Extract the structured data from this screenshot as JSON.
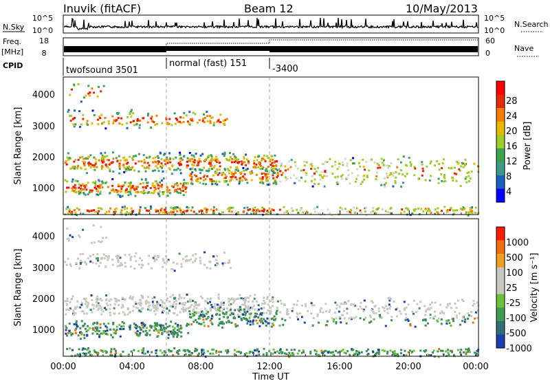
{
  "header": {
    "station": "Inuvik (fitACF)",
    "beam": "Beam 12",
    "date": "10/May/2013"
  },
  "strips": {
    "nsky_label": "N.Sky",
    "nsearch_label": "N.Search",
    "nsky_ticks": [
      "10^5",
      "10^0"
    ],
    "nsearch_ticks": [
      "10^5",
      "10^0"
    ],
    "freq_label": "Freq.",
    "freq_unit": "[MHz]",
    "freq_ticks": [
      "18",
      "8"
    ],
    "nave_label": "Nave",
    "nave_ticks": [
      "60",
      "0"
    ],
    "cpid_label": "CPID",
    "cpid_segments": [
      {
        "start": 0,
        "end": 6,
        "label": "twofsound 3501"
      },
      {
        "start": 6,
        "end": 12,
        "label": "normal (fast) 151"
      },
      {
        "start": 12,
        "end": 24,
        "label": "-3400"
      }
    ]
  },
  "chart_data": [
    {
      "type": "heatmap",
      "name": "power",
      "ylabel": "Slant Range [km]",
      "ylim": [
        180,
        4600
      ],
      "yticks": [
        "1000",
        "2000",
        "3000",
        "4000"
      ],
      "xlim": [
        0,
        24
      ],
      "colorbar_label": "Power [dB]",
      "colorbar_ticks": [
        "28",
        "24",
        "20",
        "16",
        "12",
        "8",
        "4"
      ],
      "colors": [
        "#0000ff",
        "#1a5fc0",
        "#3e9b8a",
        "#3ca24a",
        "#9ecc2a",
        "#e8b800",
        "#f57d00",
        "#e62a00",
        "#ff0000"
      ]
    },
    {
      "type": "heatmap",
      "name": "velocity",
      "ylabel": "Slant Range [km]",
      "ylim": [
        180,
        4600
      ],
      "yticks": [
        "1000",
        "2000",
        "3000",
        "4000"
      ],
      "xlim": [
        0,
        24
      ],
      "xlabel": "Time UT",
      "xticks": [
        "00:00",
        "04:00",
        "08:00",
        "12:00",
        "16:00",
        "20:00",
        "00:00"
      ],
      "colorbar_label": "Velocity [m s⁻¹]",
      "colorbar_ticks": [
        "1000",
        "500",
        "100",
        "25",
        "-25",
        "-100",
        "-500",
        "-1000"
      ],
      "colors": [
        "#1a3fb0",
        "#2e6f78",
        "#3d9a55",
        "#69c23a",
        "#c8c8c0",
        "#c8c8c0",
        "#f0a020",
        "#f07010",
        "#ff1a00"
      ]
    }
  ]
}
